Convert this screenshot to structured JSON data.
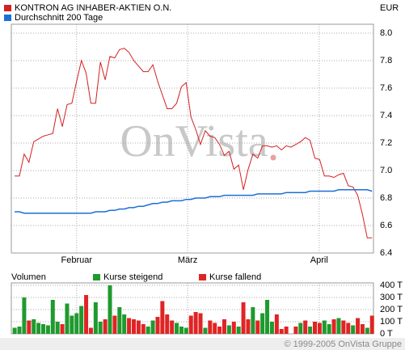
{
  "chart_data": [
    {
      "type": "line",
      "currency": "EUR",
      "watermark": "OnVista",
      "x": [
        0,
        1,
        2,
        3,
        4,
        5,
        6,
        7,
        8,
        9,
        10,
        11,
        12,
        13,
        14,
        15,
        16,
        17,
        18,
        19,
        20,
        21,
        22,
        23,
        24,
        25,
        26,
        27,
        28,
        29,
        30,
        31,
        32,
        33,
        34,
        35,
        36,
        37,
        38,
        39,
        40,
        41,
        42,
        43,
        44,
        45,
        46,
        47,
        48,
        49,
        50,
        51,
        52,
        53,
        54,
        55,
        56,
        57,
        58,
        59,
        60,
        61,
        62,
        63,
        64,
        65,
        66,
        67,
        68,
        69,
        70,
        71,
        72,
        73,
        74,
        75
      ],
      "xlim": [
        -0.7,
        75.3
      ],
      "xticks": [
        {
          "value": 13,
          "label": "Februar"
        },
        {
          "value": 36.3,
          "label": "März"
        },
        {
          "value": 63.9,
          "label": "April"
        }
      ],
      "ylim": [
        6.4,
        8.065
      ],
      "yticks": [
        6.4,
        6.6,
        6.8,
        {
          "value": 7,
          "label": "7.0"
        },
        7.2,
        7.4,
        7.6,
        7.8,
        {
          "value": 8,
          "label": "8.0"
        }
      ],
      "grid": true,
      "series": [
        {
          "name": "KONTRON AG INHABER-AKTIEN O.N.",
          "color": "#d42020",
          "values": [
            6.96,
            6.96,
            7.12,
            7.06,
            7.21,
            7.23,
            7.25,
            7.26,
            7.27,
            7.45,
            7.32,
            7.48,
            7.49,
            7.65,
            7.8,
            7.71,
            7.49,
            7.49,
            7.79,
            7.66,
            7.83,
            7.82,
            7.88,
            7.89,
            7.86,
            7.8,
            7.76,
            7.72,
            7.72,
            7.77,
            7.65,
            7.55,
            7.45,
            7.45,
            7.49,
            7.61,
            7.64,
            7.39,
            7.3,
            7.19,
            7.29,
            7.25,
            7.24,
            7.19,
            7.11,
            7.14,
            7.01,
            7.04,
            6.86,
            7.01,
            7.12,
            7.09,
            7.18,
            7.18,
            7.17,
            7.18,
            7.15,
            7.18,
            7.17,
            7.19,
            7.21,
            7.24,
            7.22,
            7.09,
            7.08,
            6.96,
            6.96,
            6.95,
            6.97,
            6.98,
            6.89,
            6.88,
            6.82,
            6.68,
            6.51,
            6.51
          ]
        },
        {
          "name": "Durchschnitt 200 Tage",
          "color": "#1c6fd8",
          "values": [
            6.7,
            6.7,
            6.69,
            6.69,
            6.69,
            6.69,
            6.69,
            6.69,
            6.69,
            6.69,
            6.69,
            6.69,
            6.69,
            6.69,
            6.69,
            6.69,
            6.69,
            6.7,
            6.7,
            6.7,
            6.71,
            6.71,
            6.72,
            6.72,
            6.73,
            6.73,
            6.74,
            6.74,
            6.75,
            6.76,
            6.76,
            6.77,
            6.77,
            6.78,
            6.78,
            6.78,
            6.79,
            6.79,
            6.8,
            6.8,
            6.8,
            6.81,
            6.81,
            6.81,
            6.82,
            6.82,
            6.82,
            6.82,
            6.82,
            6.82,
            6.82,
            6.83,
            6.83,
            6.83,
            6.83,
            6.83,
            6.83,
            6.84,
            6.84,
            6.84,
            6.84,
            6.84,
            6.85,
            6.85,
            6.85,
            6.85,
            6.85,
            6.85,
            6.86,
            6.86,
            6.86,
            6.86,
            6.86,
            6.86,
            6.86,
            6.85
          ]
        }
      ]
    },
    {
      "type": "bar",
      "title": "Volumen",
      "ylim": [
        0,
        420
      ],
      "yticks": [
        {
          "value": 0,
          "label": "0 T"
        },
        {
          "value": 100,
          "label": "100 T"
        },
        {
          "value": 200,
          "label": "200 T"
        },
        {
          "value": 300,
          "label": "300 T"
        },
        {
          "value": 400,
          "label": "400 T"
        }
      ],
      "series": [
        {
          "name": "Kurse steigend",
          "color": "#1f9a2e",
          "values": [
            50,
            60,
            300,
            null,
            120,
            90,
            80,
            70,
            280,
            100,
            null,
            250,
            150,
            170,
            230,
            null,
            null,
            260,
            100,
            null,
            400,
            null,
            220,
            160,
            null,
            null,
            null,
            null,
            60,
            110,
            null,
            null,
            null,
            null,
            90,
            60,
            50,
            null,
            null,
            null,
            50,
            null,
            null,
            null,
            null,
            70,
            null,
            60,
            null,
            null,
            220,
            null,
            170,
            280,
            100,
            null,
            null,
            null,
            null,
            null,
            90,
            null,
            60,
            null,
            null,
            110,
            80,
            null,
            130,
            null,
            null,
            70,
            null,
            null,
            50,
            null
          ]
        },
        {
          "name": "Kurse fallend",
          "color": "#e02424",
          "values": [
            null,
            null,
            null,
            110,
            null,
            null,
            null,
            null,
            null,
            null,
            80,
            null,
            null,
            null,
            null,
            320,
            50,
            null,
            null,
            120,
            null,
            150,
            null,
            null,
            130,
            120,
            110,
            80,
            null,
            null,
            140,
            270,
            160,
            110,
            null,
            null,
            null,
            150,
            180,
            170,
            null,
            110,
            90,
            60,
            120,
            null,
            100,
            null,
            260,
            120,
            null,
            110,
            null,
            null,
            null,
            160,
            40,
            60,
            null,
            60,
            null,
            110,
            null,
            100,
            90,
            null,
            null,
            120,
            null,
            110,
            90,
            null,
            130,
            80,
            null,
            150
          ]
        }
      ]
    }
  ],
  "copyright": "© 1999-2005 OnVista Gruppe"
}
